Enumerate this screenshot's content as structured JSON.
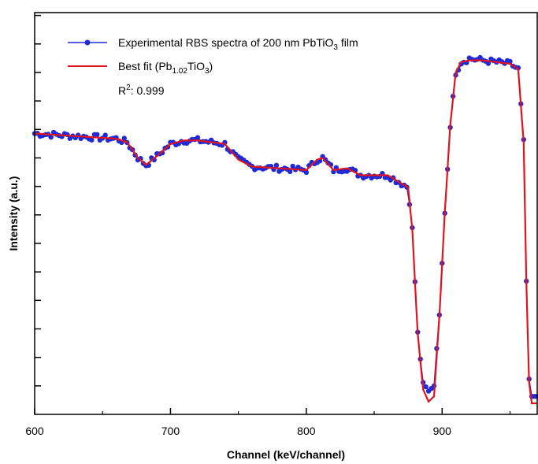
{
  "chart_data": {
    "type": "line",
    "title": "",
    "xlabel": "Channel (keV/channel)",
    "ylabel": "Intensity (a.u.)",
    "xlim": [
      600,
      970
    ],
    "x_ticks": [
      "600",
      "700",
      "800",
      "900"
    ],
    "y_ticks_labeled": false,
    "ylim": [
      0,
      1
    ],
    "grid": false,
    "legend_position": "top-left",
    "series": [
      {
        "name": "Experimental RBS spectra of 200 nm PbTiO3 film",
        "name_parts": {
          "before": "Experimental RBS spectra of 200 nm PbTiO",
          "sub": "3",
          "after": " film"
        },
        "style": "line-with-markers",
        "color": "#1f2bd8",
        "x": [
          600,
          620,
          640,
          660,
          668,
          676,
          682,
          690,
          700,
          710,
          720,
          740,
          750,
          760,
          780,
          800,
          808,
          812,
          820,
          830,
          840,
          860,
          875,
          878,
          882,
          886,
          890,
          894,
          898,
          902,
          906,
          910,
          914,
          920,
          930,
          950,
          956,
          960,
          962,
          964,
          966,
          970
        ],
        "y": [
          0.775,
          0.77,
          0.765,
          0.76,
          0.75,
          0.705,
          0.685,
          0.71,
          0.745,
          0.755,
          0.755,
          0.745,
          0.7,
          0.68,
          0.675,
          0.67,
          0.7,
          0.705,
          0.67,
          0.675,
          0.655,
          0.655,
          0.62,
          0.5,
          0.2,
          0.06,
          0.035,
          0.05,
          0.25,
          0.55,
          0.8,
          0.95,
          0.98,
          0.99,
          0.985,
          0.975,
          0.96,
          0.75,
          0.35,
          0.07,
          0.02,
          0.02
        ]
      },
      {
        "name": "Best fit (Pb1.02TiO3)",
        "name_parts": {
          "before": "Best fit (Pb",
          "sub1": "1.02",
          "mid": "TiO",
          "sub2": "3",
          "after": ")"
        },
        "style": "line",
        "color": "#e0141e",
        "x": [
          600,
          620,
          640,
          660,
          668,
          676,
          682,
          690,
          700,
          710,
          720,
          740,
          750,
          760,
          780,
          800,
          808,
          812,
          820,
          830,
          840,
          860,
          875,
          878,
          882,
          886,
          890,
          894,
          898,
          902,
          906,
          910,
          914,
          920,
          930,
          950,
          956,
          960,
          962,
          964,
          966,
          970
        ],
        "y": [
          0.775,
          0.77,
          0.765,
          0.76,
          0.75,
          0.705,
          0.685,
          0.71,
          0.745,
          0.755,
          0.755,
          0.745,
          0.7,
          0.68,
          0.675,
          0.67,
          0.7,
          0.705,
          0.67,
          0.675,
          0.655,
          0.655,
          0.62,
          0.5,
          0.2,
          0.04,
          0.005,
          0.02,
          0.25,
          0.55,
          0.8,
          0.95,
          0.98,
          0.985,
          0.985,
          0.975,
          0.96,
          0.75,
          0.35,
          0.06,
          0.0,
          0.0
        ]
      }
    ],
    "annotations": [
      {
        "text_parts": {
          "base": "R",
          "sup": "2",
          "after": ": 0.999"
        }
      }
    ]
  }
}
